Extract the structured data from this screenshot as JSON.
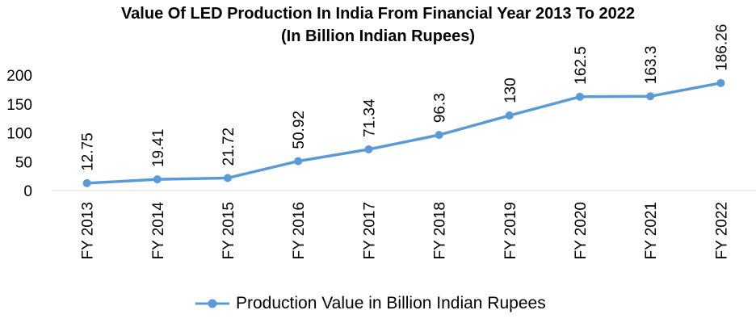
{
  "chart_data": {
    "type": "line",
    "title": "Value Of LED Production In India From Financial Year 2013 To 2022",
    "subtitle": "(In Billion Indian Rupees)",
    "categories": [
      "FY 2013",
      "FY 2014",
      "FY 2015",
      "FY 2016",
      "FY 2017",
      "FY 2018",
      "FY 2019",
      "FY 2020",
      "FY 2021",
      "FY 2022"
    ],
    "series": [
      {
        "name": "Production Value in Billion Indian Rupees",
        "values": [
          12.75,
          19.41,
          21.72,
          50.92,
          71.34,
          96.3,
          130,
          162.5,
          163.3,
          186.26
        ],
        "labels": [
          "12.75",
          "19.41",
          "21.72",
          "50.92",
          "71.34",
          "96.3",
          "130",
          "162.5",
          "163.3",
          "186.26"
        ],
        "color": "#5B9BD5"
      }
    ],
    "yticks": [
      "0",
      "50",
      "100",
      "150",
      "200"
    ],
    "ylim": [
      0,
      200
    ],
    "grid": false,
    "legend": "bottom"
  }
}
